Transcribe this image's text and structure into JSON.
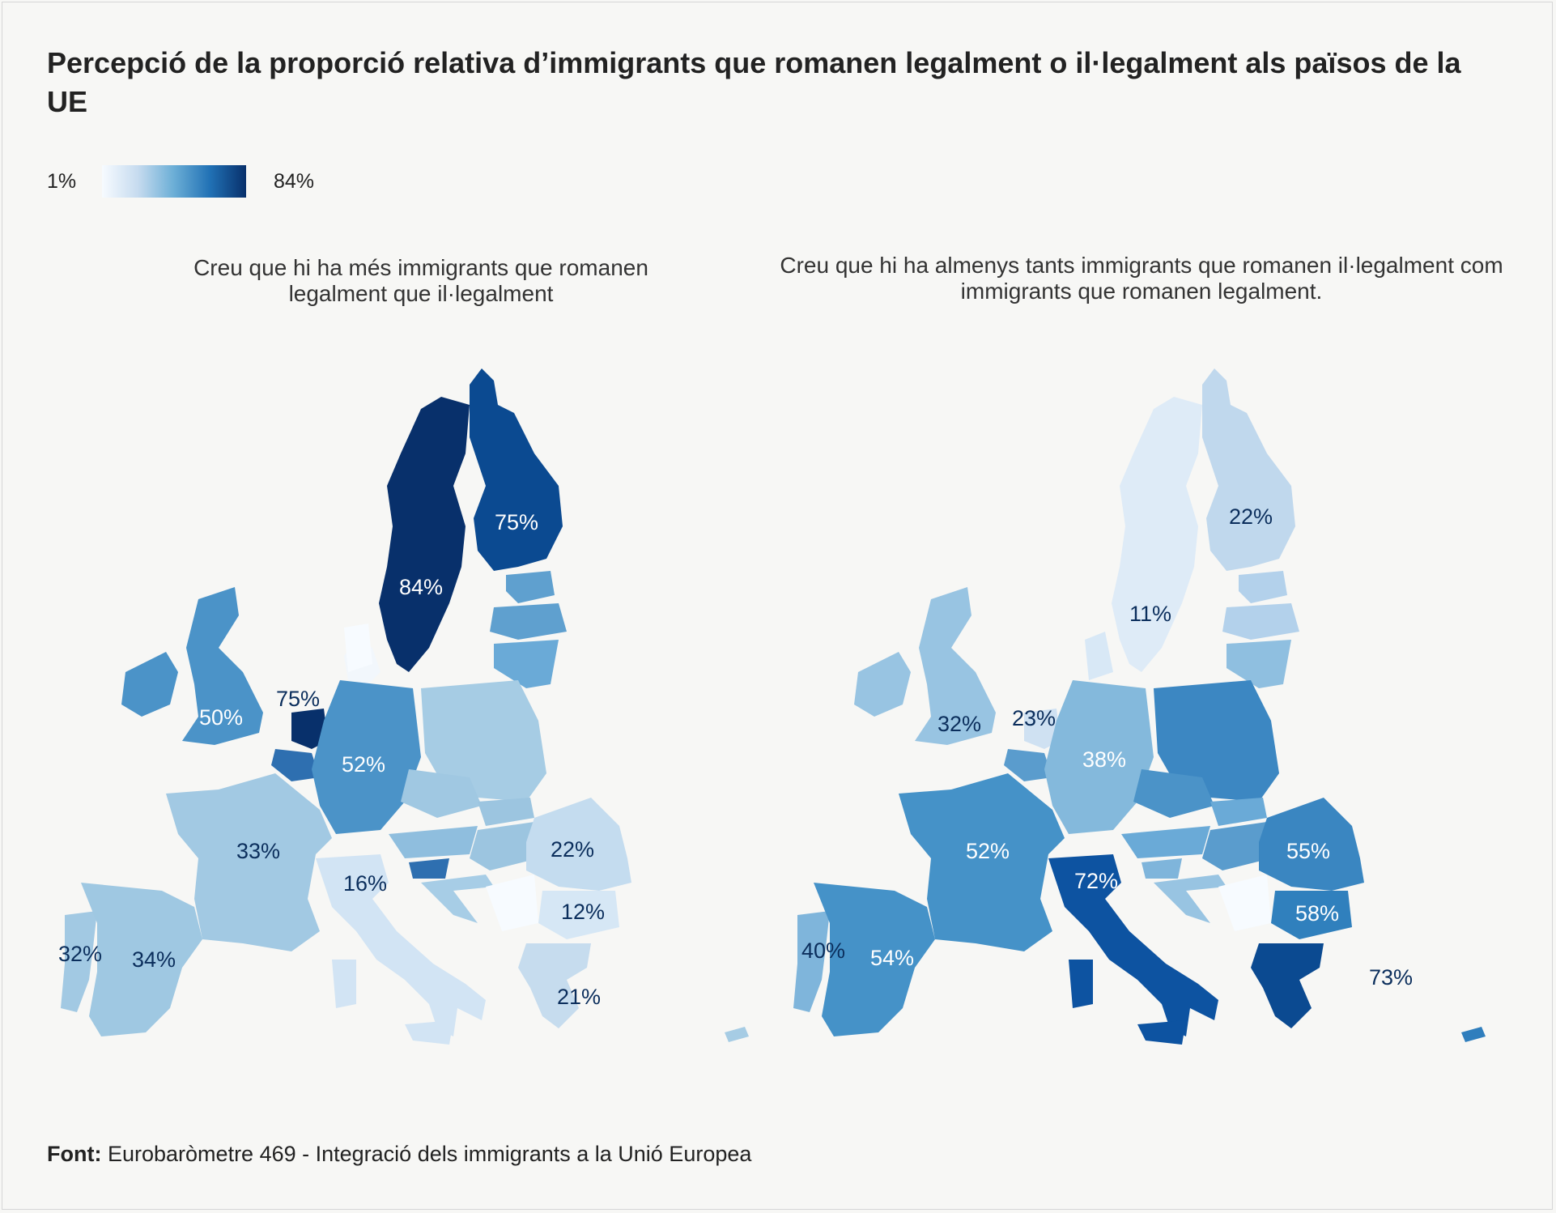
{
  "title": "Percepció de la proporció relativa d’immigrants que romanen legalment o il·legalment als països de la UE",
  "legend": {
    "min": "1%",
    "max": "84%"
  },
  "panels": {
    "left": {
      "subtitle": "Creu que hi ha més immigrants que romanen legalment que il·legalment"
    },
    "right": {
      "subtitle": "Creu que hi ha almenys tants immigrants que romanen il·legalment com immigrants que romanen legalment."
    }
  },
  "source": {
    "label": "Font:",
    "text": "Eurobaròmetre 469 - Integració dels immigrants a la Unió Europea"
  },
  "colors": {
    "background": "#f7f7f5",
    "scale_low": "#f7fbff",
    "scale_high": "#08306b"
  },
  "labels": {
    "left": {
      "sweden": "84%",
      "finland": "75%",
      "netherlands": "75%",
      "uk": "50%",
      "germany": "52%",
      "france": "33%",
      "portugal": "32%",
      "spain": "34%",
      "italy": "16%",
      "romania": "22%",
      "bulgaria": "12%",
      "greece": "21%"
    },
    "right": {
      "sweden": "11%",
      "finland": "22%",
      "netherlands": "23%",
      "uk": "32%",
      "germany": "38%",
      "france": "52%",
      "portugal": "40%",
      "spain": "54%",
      "italy": "72%",
      "romania": "55%",
      "bulgaria": "58%",
      "greece": "73%"
    }
  }
}
